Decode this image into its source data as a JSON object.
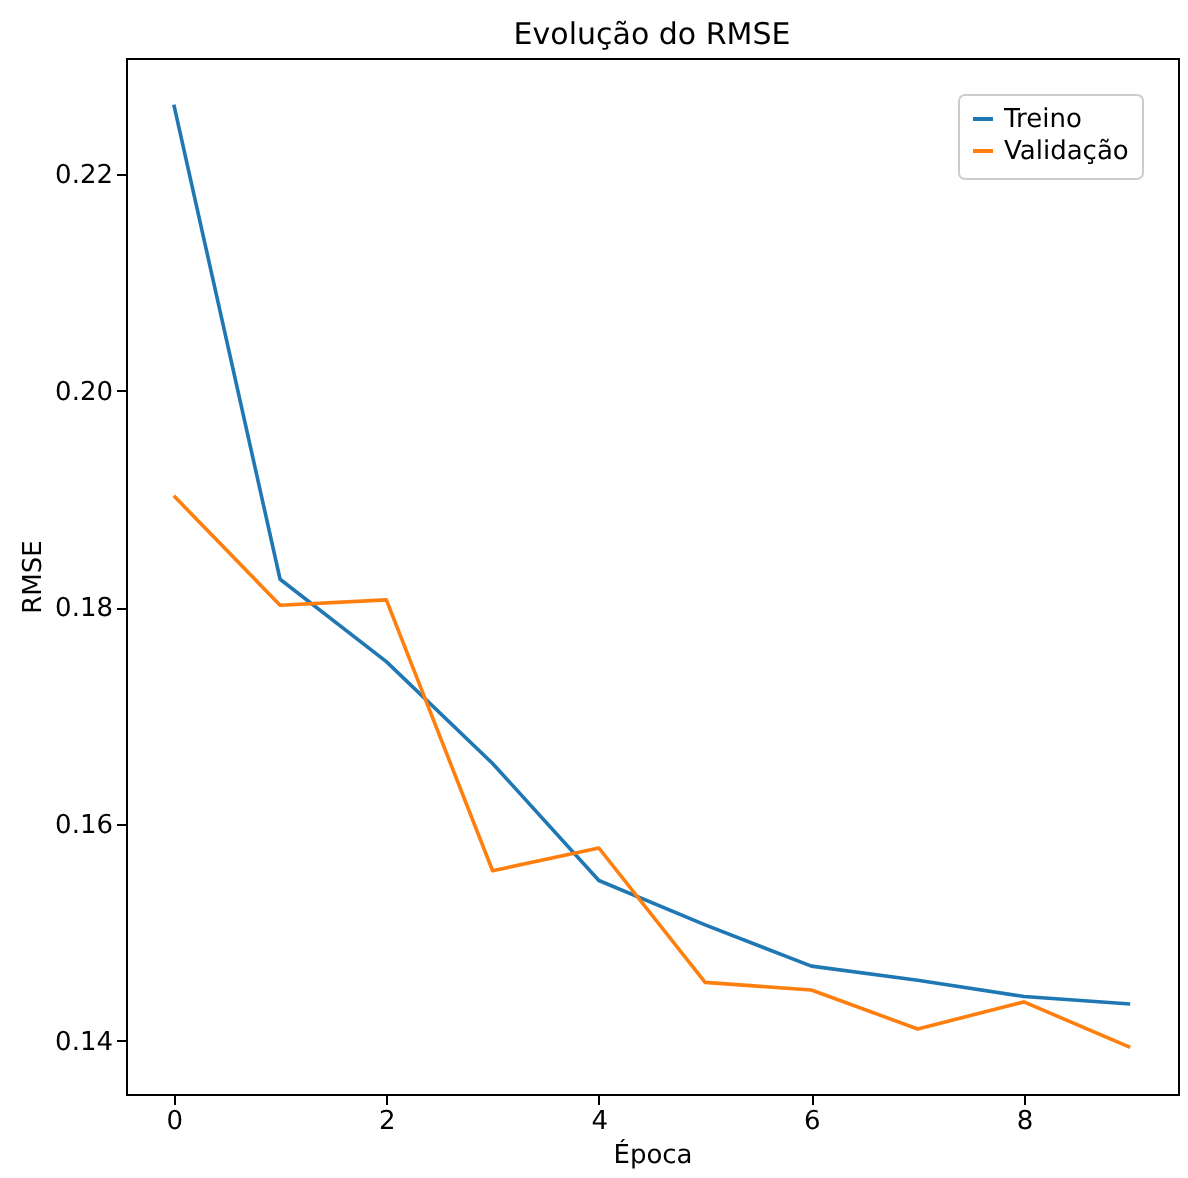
{
  "chart_data": {
    "type": "line",
    "title": "Evolução do RMSE",
    "xlabel": "Época",
    "ylabel": "RMSE",
    "x": [
      0,
      1,
      2,
      3,
      4,
      5,
      6,
      7,
      8,
      9
    ],
    "series": [
      {
        "name": "Treino",
        "color": "#1f77b4",
        "values": [
          0.2264,
          0.1826,
          0.175,
          0.1656,
          0.1548,
          0.1507,
          0.1469,
          0.1456,
          0.1441,
          0.1434
        ]
      },
      {
        "name": "Validação",
        "color": "#ff7f0e",
        "values": [
          0.1903,
          0.1802,
          0.1807,
          0.1557,
          0.1578,
          0.1454,
          0.1447,
          0.1411,
          0.1436,
          0.1394
        ]
      }
    ],
    "xlim": [
      -0.45,
      9.45
    ],
    "xticks": [
      0,
      2,
      4,
      6,
      8
    ],
    "ylim": [
      0.1351,
      0.2307
    ],
    "yticks": [
      {
        "value": 0.14,
        "label": "0.14"
      },
      {
        "value": 0.16,
        "label": "0.16"
      },
      {
        "value": 0.18,
        "label": "0.18"
      },
      {
        "value": 0.2,
        "label": "0.20"
      },
      {
        "value": 0.22,
        "label": "0.22"
      }
    ],
    "grid": false,
    "legend": "top right",
    "marker": "none",
    "line_style": "solid"
  }
}
